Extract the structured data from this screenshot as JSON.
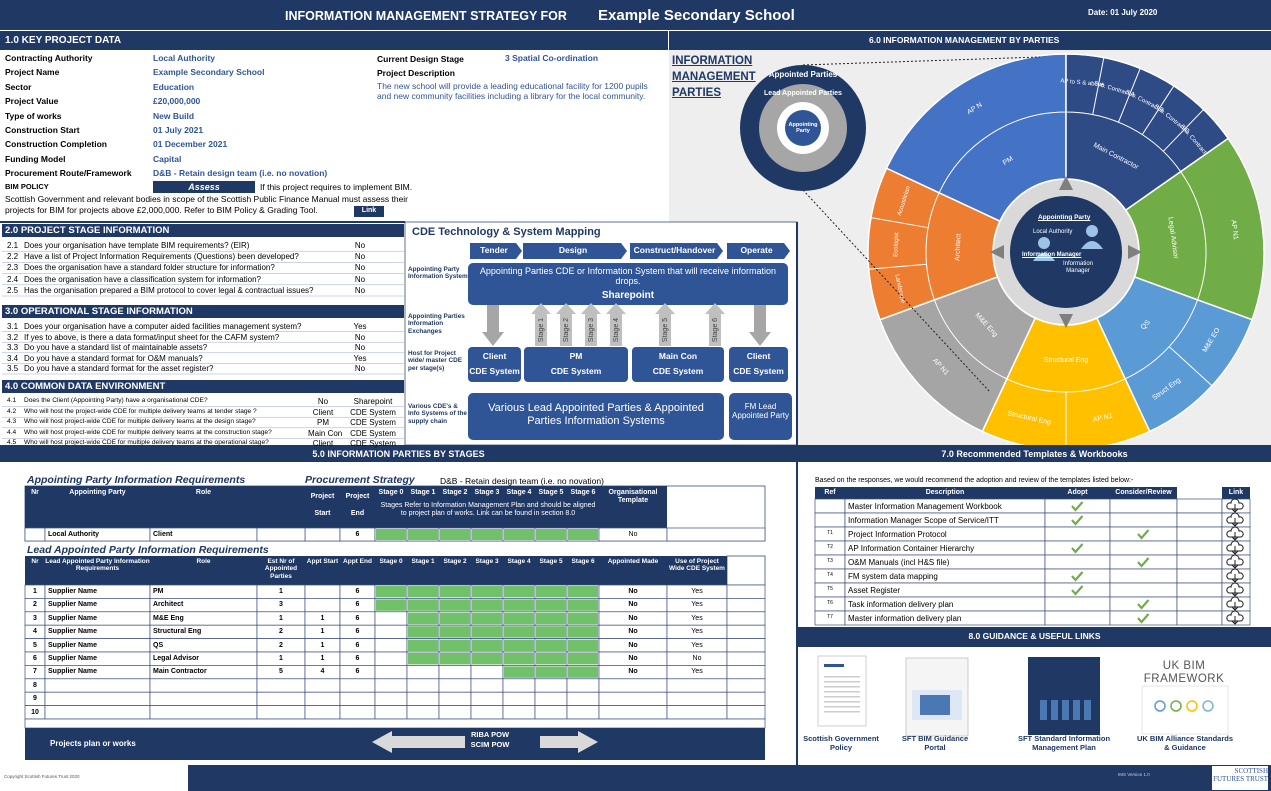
{
  "header": {
    "title": "INFORMATION MANAGEMENT STRATEGY FOR",
    "school": "Example Secondary School",
    "date": "Date:  01 July 2020"
  },
  "key_data": {
    "heading": "1.0 KEY PROJECT DATA",
    "fields": [
      {
        "label": "Contracting Authority",
        "value": "Local Authority"
      },
      {
        "label": "Project Name",
        "value": "Example Secondary School"
      },
      {
        "label": "Sector",
        "value": "Education"
      },
      {
        "label": "Project Value",
        "value": "£20,000,000"
      },
      {
        "label": "Type of works",
        "value": "New Build"
      },
      {
        "label": "Construction Start",
        "value": "01 July 2021"
      },
      {
        "label": "Construction Completion",
        "value": "01 December 2021"
      },
      {
        "label": "Funding Model",
        "value": "Capital"
      },
      {
        "label": "Procurement Route/Framework",
        "value": "D&B - Retain design team (i.e. no novation)"
      }
    ],
    "design_stage": {
      "label": "Current Design Stage",
      "value": "3 Spatial Co-ordination"
    },
    "description": {
      "label": "Project Description",
      "text": "The new school will provide a leading educational facility for 1200 pupils and new community facilities including a library for the local community."
    },
    "bim": {
      "label": "BIM POLICY",
      "button": "Assess",
      "note": "If this project requires to implement BIM.",
      "text": "Scottish Government and relevant bodies in scope of the Scottish Public Finance Manual must assess their projects for BIM for projects above £2,000,000. Refer to BIM Policy & Grading Tool.",
      "link": "Link"
    }
  },
  "project_stage": {
    "heading": "2.0 PROJECT STAGE INFORMATION",
    "questions": [
      {
        "nr": "2.1",
        "text": "Does your organisation have template BIM requirements? (EIR)",
        "answer": "No"
      },
      {
        "nr": "2.2",
        "text": "Have a list of Project Information Requirements (Questions) been developed?",
        "answer": "No"
      },
      {
        "nr": "2.3",
        "text": "Does the organisation have a standard folder structure for information?",
        "answer": "No"
      },
      {
        "nr": "2.4",
        "text": "Does the organisation have a classification system for information?",
        "answer": "No"
      },
      {
        "nr": "2.5",
        "text": "Has the organisation prepared a BIM protocol to cover legal & contractual issues?",
        "answer": "No"
      }
    ]
  },
  "operational_stage": {
    "heading": "3.0 OPERATIONAL STAGE INFORMATION",
    "questions": [
      {
        "nr": "3.1",
        "text": "Does your organisation have a computer aided facilities management system?",
        "answer": "Yes"
      },
      {
        "nr": "3.2",
        "text": "If yes to above, is there a data format/input sheet for the CAFM system?",
        "answer": "No"
      },
      {
        "nr": "3.3",
        "text": "Do you have a standard list of maintainable assets?",
        "answer": "No"
      },
      {
        "nr": "3.4",
        "text": "Do you have a standard format for O&M manuals?",
        "answer": "Yes"
      },
      {
        "nr": "3.5",
        "text": "Do you have a standard format for the asset register?",
        "answer": "No"
      }
    ]
  },
  "cde": {
    "heading": "4.0 COMMON DATA ENVIRONMENT",
    "questions": [
      {
        "nr": "4.1",
        "text": "Does the Client (Appointing Party) have a organisational CDE?",
        "who": "No",
        "answer": "Sharepoint"
      },
      {
        "nr": "4.2",
        "text": "Who will host the project-wide CDE for multiple delivery teams at tender stage ?",
        "who": "Client",
        "answer": "CDE System"
      },
      {
        "nr": "4.3",
        "text": "Who will host  project-wide CDE for multiple delivery teams at the design stage?",
        "who": "PM",
        "answer": "CDE System"
      },
      {
        "nr": "4.4",
        "text": "Who will host  project-wide CDE for multiple delivery teams at the construction stage?",
        "who": "Main Con",
        "answer": "CDE System"
      },
      {
        "nr": "4.5",
        "text": "Who will host project-wide CDE for multiple delivery teams at the operational stage?",
        "who": "Client",
        "answer": "CDE System"
      }
    ]
  },
  "cde_map": {
    "title": "CDE Technology & System Mapping",
    "phases": [
      "Tender",
      "Design",
      "Construct/Handover",
      "Operate"
    ],
    "row_labels": [
      "Appointing Party Information System",
      "Appointing Parties Information Exchanges",
      "Host for Project wide/ master CDE per stage(s)",
      "Various CDE's & Info Systems of the supply chain"
    ],
    "top_box": "Appointing Parties CDE or Information System that will receive information drops.",
    "top_box_name": "Sharepoint",
    "stages": [
      "Stage 1",
      "Stage 2",
      "Stage 3",
      "Stage 4",
      "Stage 5",
      "Stage 6"
    ],
    "systems": [
      {
        "name": "Client",
        "sub": "CDE System"
      },
      {
        "name": "PM",
        "sub": "CDE System"
      },
      {
        "name": "Main Con",
        "sub": "CDE System"
      },
      {
        "name": "Client",
        "sub": "CDE System"
      }
    ],
    "bottom_box": "Various Lead Appointed Parties & Appointed Parties  Information Systems",
    "fm_box": "FM Lead Appointed Party"
  },
  "wheel": {
    "heading": "6.0 INFORMATION MANAGEMENT BY PARTIES",
    "title": "INFORMATION MANAGEMENT PARTIES",
    "legend": {
      "outer": "Appointed Parties",
      "ring": "Lead Appointed Parties",
      "center": "Appointing Party"
    },
    "center": {
      "party": "Appointing Party",
      "authority": "Local Authority",
      "manager": "Information Manager",
      "manager2": "Information Manager"
    },
    "sectors": [
      {
        "color": "#4472c4",
        "inner": "PM",
        "outer": [
          "AP N"
        ]
      },
      {
        "color": "#2f4b86",
        "inner": "Main Contractor",
        "outer": [
          "AP to S & above",
          "Sub. Contract A",
          "Sub. Contract B",
          "Sub. Contract C",
          "Sub. Contract D"
        ]
      },
      {
        "color": "#70ad47",
        "inner": "Legal Advisor",
        "outer": [
          "AP N1"
        ]
      },
      {
        "color": "#5b9bd5",
        "inner": "QS",
        "outer": [
          "M&E EO",
          "Struct Eng"
        ]
      },
      {
        "color": "#ffc000",
        "inner": "Structural Eng",
        "outer": [
          "AP N1",
          "Structural Eng"
        ]
      },
      {
        "color": "#a5a5a5",
        "inner": "M&E Eng",
        "outer": [
          "AP N1"
        ]
      },
      {
        "color": "#ed7d31",
        "inner": "Architect",
        "outer": [
          "Landscape",
          "Ecologist",
          "Acoustician"
        ]
      }
    ]
  },
  "parties": {
    "heading": "5.0 INFORMATION PARTIES BY STAGES",
    "top_title": "Appointing Party Information Requirements",
    "procurement_label": "Procurement Strategy",
    "procurement_value": "D&B - Retain design team (i.e. no novation)",
    "top_headers": [
      "Nr",
      "Appointing Party",
      "Role",
      "Project Start",
      "Project End",
      "Stage 0",
      "Stage 1",
      "Stage 2",
      "Stage 3",
      "Stage 4",
      "Stage 5",
      "Stage 6",
      "Organisational Template"
    ],
    "stage_note": "Stages Refer to Information Management Plan and should be aligned to project plan of works. Link can be found in section 8.0",
    "top_row": {
      "party": "Local Authority",
      "role": "Client",
      "end": 6,
      "stages": [
        true,
        true,
        true,
        true,
        true,
        true,
        true
      ],
      "template": "No"
    },
    "lead_title": "Lead Appointed Party Information Requirements",
    "lead_headers": [
      "Nr",
      "Lead Appointed Party Information Requirements",
      "Role",
      "Est Nr of Appointed Parties",
      "Appt Start",
      "Appt End",
      "Stage 0",
      "Stage 1",
      "Stage 2",
      "Stage 3",
      "Stage 4",
      "Stage 5",
      "Stage 6",
      "Appointed Made",
      "Use of Project Wide CDE System"
    ],
    "rows": [
      {
        "nr": 1,
        "name": "Supplier Name",
        "role": "PM",
        "est": 1,
        "start": null,
        "end": 6,
        "stages": [
          true,
          true,
          true,
          true,
          true,
          true,
          true
        ],
        "made": "No",
        "cde": "Yes"
      },
      {
        "nr": 2,
        "name": "Supplier Name",
        "role": "Architect",
        "est": 3,
        "start": null,
        "end": 6,
        "stages": [
          true,
          true,
          true,
          true,
          true,
          true,
          true
        ],
        "made": "No",
        "cde": "Yes"
      },
      {
        "nr": 3,
        "name": "Supplier Name",
        "role": "M&E Eng",
        "est": 1,
        "start": 1,
        "end": 6,
        "stages": [
          false,
          true,
          true,
          true,
          true,
          true,
          true
        ],
        "made": "No",
        "cde": "Yes"
      },
      {
        "nr": 4,
        "name": "Supplier Name",
        "role": "Structural Eng",
        "est": 2,
        "start": 1,
        "end": 6,
        "stages": [
          false,
          true,
          true,
          true,
          true,
          true,
          true
        ],
        "made": "No",
        "cde": "Yes"
      },
      {
        "nr": 5,
        "name": "Supplier Name",
        "role": "QS",
        "est": 2,
        "start": 1,
        "end": 6,
        "stages": [
          false,
          true,
          true,
          true,
          true,
          true,
          true
        ],
        "made": "No",
        "cde": "Yes"
      },
      {
        "nr": 6,
        "name": "Supplier Name",
        "role": "Legal Advisor",
        "est": 1,
        "start": 1,
        "end": 6,
        "stages": [
          false,
          true,
          true,
          true,
          true,
          true,
          true
        ],
        "made": "No",
        "cde": "No"
      },
      {
        "nr": 7,
        "name": "Supplier Name",
        "role": "Main Contractor",
        "est": 5,
        "start": 4,
        "end": 6,
        "stages": [
          false,
          false,
          false,
          false,
          true,
          true,
          true
        ],
        "made": "No",
        "cde": "Yes"
      },
      {
        "nr": 8
      },
      {
        "nr": 9
      },
      {
        "nr": 10
      }
    ],
    "footer_label": "Projects plan or works",
    "pow": [
      "RIBA POW",
      "SCIM POW"
    ]
  },
  "templates": {
    "heading": "7.0 Recommended Templates & Workbooks",
    "intro": "Based on the responses, we would recommend the adoption and review of the templates listed below:-",
    "headers": [
      "Ref",
      "Description",
      "Adopt",
      "Consider/Review",
      "Link"
    ],
    "rows": [
      {
        "ref": null,
        "description": "Master Information Management Workbook",
        "adopt": true,
        "consider": false
      },
      {
        "ref": null,
        "description": "Information Manager Scope of Service/ITT",
        "adopt": true,
        "consider": false
      },
      {
        "ref": "T1",
        "description": "Project Information Protocol",
        "adopt": false,
        "consider": true
      },
      {
        "ref": "T2",
        "description": "AP Information Container Hierarchy",
        "adopt": true,
        "consider": false
      },
      {
        "ref": "T3",
        "description": "O&M Manuals (incl H&S file)",
        "adopt": false,
        "consider": true
      },
      {
        "ref": "T4",
        "description": "FM system data mapping",
        "adopt": true,
        "consider": false
      },
      {
        "ref": "T5",
        "description": "Asset Register",
        "adopt": true,
        "consider": false
      },
      {
        "ref": "T6",
        "description": "Task information delivery plan",
        "adopt": false,
        "consider": true
      },
      {
        "ref": "T7",
        "description": "Master information delivery plan",
        "adopt": false,
        "consider": true
      }
    ]
  },
  "guidance": {
    "heading": "8.0 GUIDANCE & USEFUL LINKS",
    "framework_logo": "UK BIM FRAMEWORK",
    "links": [
      "Scottish Government Policy",
      "SFT BIM Guidance Portal",
      "SFT Standard Information Management Plan",
      "UK BIM Alliance Standards & Guidance"
    ]
  },
  "footer": {
    "copyright": "Copyright Scottish Futures Trust 2020",
    "version": "IMS Version 1.0",
    "brand": "SCOTTISH FUTURES TRUST"
  }
}
